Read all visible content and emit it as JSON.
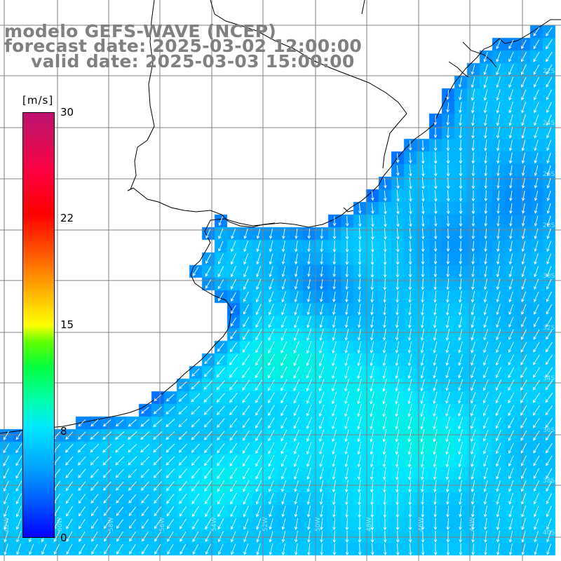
{
  "title": {
    "line1": "modelo GEFS-WAVE (NCEP)",
    "line2": "forecast date: 2025-03-02 12:00:00",
    "line3": "valid date: 2025-03-03 15:00:00"
  },
  "colorbar": {
    "unit": "[m/s]",
    "ticks": [
      {
        "label": "30",
        "value": 30
      },
      {
        "label": "22",
        "value": 22
      },
      {
        "label": "15",
        "value": 15
      },
      {
        "label": "8",
        "value": 8
      },
      {
        "label": "0",
        "value": 0
      }
    ],
    "min": 0,
    "max": 30
  },
  "map": {
    "variable": "wind speed and direction",
    "prevailing_wind_direction": "from the northeast toward the southwest",
    "wind_speed_range_m_s": [
      3,
      12
    ],
    "land_color": "#ffffff",
    "coastline_color": "#000000",
    "grid_color": "#808080",
    "arrow_color": "#ffffff",
    "lon_labels": [
      "62W",
      "60W",
      "58W",
      "56W",
      "54W",
      "52W",
      "50W",
      "48W",
      "46W",
      "44W"
    ],
    "lat_labels": [
      "22S",
      "24S",
      "26S",
      "28S",
      "30S",
      "32S",
      "34S",
      "36S",
      "38S",
      "40S"
    ]
  }
}
